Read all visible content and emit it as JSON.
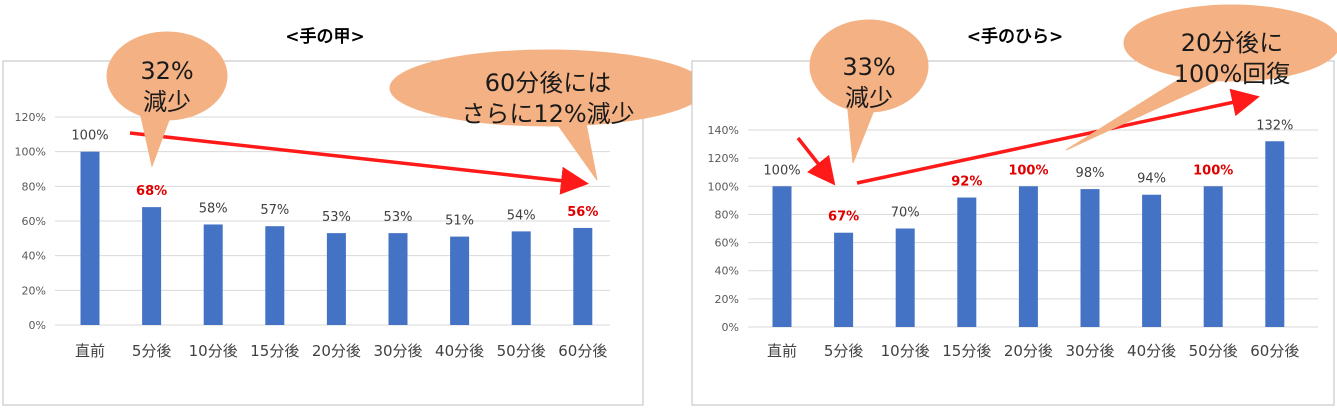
{
  "colors": {
    "bar": "#4472C4",
    "highlight": "#E00000",
    "arrow": "#FF1A1A",
    "callout_fill": "#F4B183",
    "callout_stroke": "#F4B183",
    "grid": "#D9D9D9",
    "frame": "#BFBFBF"
  },
  "chart_data": [
    {
      "type": "bar",
      "title": "<手の甲>",
      "categories": [
        "直前",
        "5分後",
        "10分後",
        "15分後",
        "20分後",
        "30分後",
        "40分後",
        "50分後",
        "60分後"
      ],
      "values": [
        100,
        68,
        58,
        57,
        53,
        53,
        51,
        54,
        56
      ],
      "value_labels": [
        "100%",
        "68%",
        "58%",
        "57%",
        "53%",
        "53%",
        "51%",
        "54%",
        "56%"
      ],
      "highlighted": [
        false,
        true,
        false,
        false,
        false,
        false,
        false,
        false,
        true
      ],
      "ylim": [
        0,
        120
      ],
      "yticks": [
        "0%",
        "20%",
        "40%",
        "60%",
        "80%",
        "100%",
        "120%"
      ],
      "grid": true,
      "callouts": [
        {
          "lines": [
            "32%",
            "減少"
          ]
        },
        {
          "lines": [
            "60分後には",
            "さらに12%減少"
          ]
        }
      ]
    },
    {
      "type": "bar",
      "title": "<手のひら>",
      "categories": [
        "直前",
        "5分後",
        "10分後",
        "15分後",
        "20分後",
        "30分後",
        "40分後",
        "50分後",
        "60分後"
      ],
      "values": [
        100,
        67,
        70,
        92,
        100,
        98,
        94,
        100,
        132
      ],
      "value_labels": [
        "100%",
        "67%",
        "70%",
        "92%",
        "100%",
        "98%",
        "94%",
        "100%",
        "132%"
      ],
      "highlighted": [
        false,
        true,
        false,
        true,
        true,
        false,
        false,
        true,
        false
      ],
      "ylim": [
        0,
        140
      ],
      "yticks": [
        "0%",
        "20%",
        "40%",
        "60%",
        "80%",
        "100%",
        "120%",
        "140%"
      ],
      "grid": true,
      "callouts": [
        {
          "lines": [
            "33%",
            "減少"
          ]
        },
        {
          "lines": [
            "20分後に",
            "100%回復"
          ]
        }
      ]
    }
  ]
}
